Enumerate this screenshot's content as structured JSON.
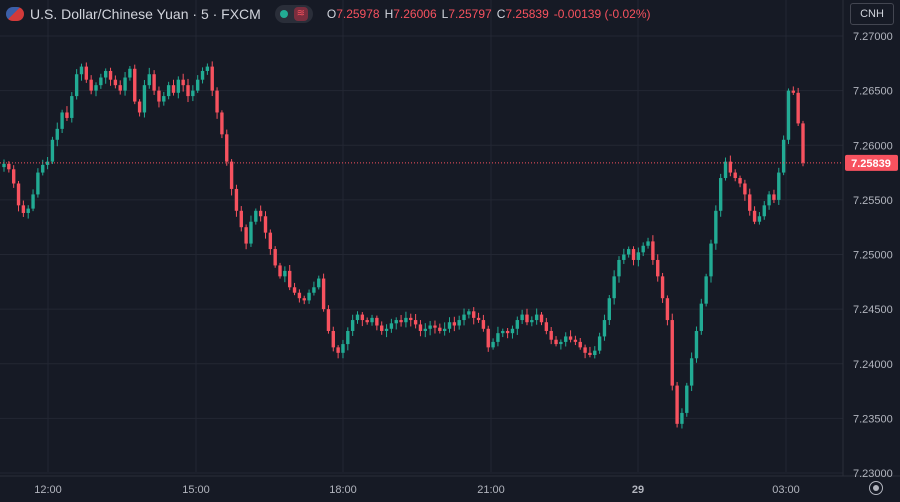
{
  "header": {
    "title": "U.S. Dollar/Chinese Yuan · 5 · FXCM",
    "ohlc": [
      {
        "k": "O",
        "v": "7.25978"
      },
      {
        "k": "H",
        "v": "7.26006"
      },
      {
        "k": "L",
        "v": "7.25797"
      },
      {
        "k": "C",
        "v": "7.25839"
      },
      {
        "k": "",
        "v": "-0.00139 (-0.02%)"
      }
    ]
  },
  "currency_button": "CNH",
  "colors": {
    "up": "#22ab94",
    "down": "#f7525f",
    "background": "#161a25",
    "grid": "#232733",
    "text": "#b2b5be"
  },
  "chart_data": {
    "type": "candlestick",
    "title": "U.S. Dollar/Chinese Yuan · 5 · FXCM",
    "ylim": [
      7.23,
      7.27
    ],
    "y_ticks": [
      "7.27000",
      "7.26500",
      "7.26000",
      "7.25500",
      "7.25000",
      "7.24500",
      "7.24000",
      "7.23500",
      "7.23000"
    ],
    "x_ticks": [
      "12:00",
      "15:00",
      "18:00",
      "21:00",
      "29",
      "03:00"
    ],
    "last_price": "7.25839",
    "closes": [
      7.2583,
      7.2578,
      7.2565,
      7.2545,
      7.2538,
      7.2542,
      7.2555,
      7.2575,
      7.2582,
      7.2585,
      7.2605,
      7.2615,
      7.263,
      7.2625,
      7.2645,
      7.2665,
      7.2672,
      7.266,
      7.265,
      7.2655,
      7.2662,
      7.2668,
      7.266,
      7.2655,
      7.265,
      7.2662,
      7.267,
      7.264,
      7.263,
      7.2655,
      7.2665,
      7.265,
      7.264,
      7.2645,
      7.2655,
      7.2648,
      7.266,
      7.2655,
      7.2645,
      7.265,
      7.266,
      7.2668,
      7.2672,
      7.265,
      7.263,
      7.261,
      7.2585,
      7.256,
      7.254,
      7.2525,
      7.251,
      7.253,
      7.254,
      7.2535,
      7.252,
      7.2505,
      7.249,
      7.248,
      7.2485,
      7.247,
      7.2465,
      7.246,
      7.2458,
      7.2465,
      7.247,
      7.2478,
      7.245,
      7.243,
      7.2415,
      7.241,
      7.2418,
      7.243,
      7.244,
      7.2445,
      7.244,
      7.2438,
      7.2442,
      7.2435,
      7.243,
      7.2432,
      7.2437,
      7.244,
      7.2438,
      7.2442,
      7.244,
      7.2436,
      7.243,
      7.2432,
      7.2435,
      7.2433,
      7.243,
      7.2432,
      7.2438,
      7.2435,
      7.244,
      7.2445,
      7.2448,
      7.2442,
      7.244,
      7.2432,
      7.2415,
      7.242,
      7.2428,
      7.243,
      7.2428,
      7.2432,
      7.244,
      7.2445,
      7.2438,
      7.244,
      7.2445,
      7.2438,
      7.243,
      7.2422,
      7.2418,
      7.242,
      7.2425,
      7.2422,
      7.242,
      7.2415,
      7.241,
      7.2408,
      7.2412,
      7.2425,
      7.244,
      7.246,
      7.248,
      7.2495,
      7.25,
      7.2505,
      7.2495,
      7.2502,
      7.2508,
      7.2512,
      7.2495,
      7.248,
      7.246,
      7.244,
      7.238,
      7.2345,
      7.2355,
      7.238,
      7.2405,
      7.243,
      7.2455,
      7.248,
      7.251,
      7.254,
      7.257,
      7.2585,
      7.2575,
      7.257,
      7.2565,
      7.2555,
      7.254,
      7.253,
      7.2535,
      7.2545,
      7.2555,
      7.255,
      7.2575,
      7.2605,
      7.265,
      7.2648,
      7.262,
      7.2584
    ]
  }
}
